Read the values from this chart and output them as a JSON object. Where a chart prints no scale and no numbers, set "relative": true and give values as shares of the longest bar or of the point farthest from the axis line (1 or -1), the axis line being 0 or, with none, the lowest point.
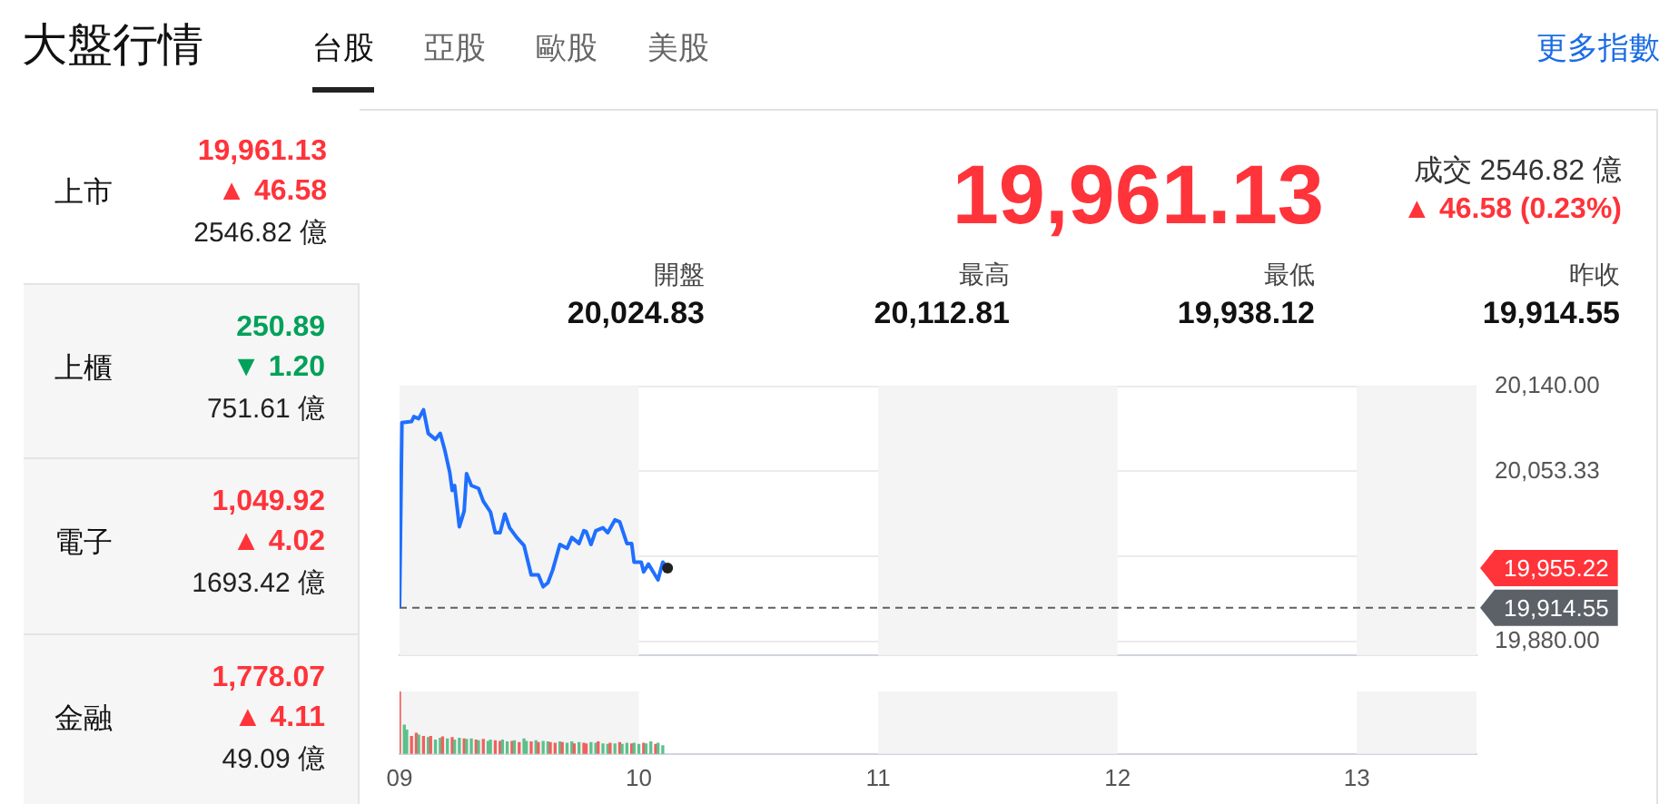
{
  "chart_data": [
    {
      "type": "other",
      "title": "大盤行情",
      "annotations": [
        "台股",
        "亞股",
        "歐股",
        "美股",
        "更多指數",
        "19,961.13",
        "成交 2546.82 億",
        "▲ 46.58 (0.23%)",
        "開盤",
        "20,024.83",
        "最高",
        "20,112.81",
        "最低",
        "19,938.12",
        "昨收",
        "19,914.55",
        "上市",
        "19,961.13",
        "▲ 46.58",
        "2546.82 億",
        "上櫃",
        "250.89",
        "▼ 1.20",
        "751.61 億",
        "電子",
        "1,049.92",
        "▲ 4.02",
        "1693.42 億",
        "金融",
        "1,778.07",
        "▲ 4.11",
        "49.09 億"
      ]
    },
    {
      "type": "line",
      "color": "#1f6fff",
      "tick_labels": "y",
      "grid": "y",
      "xlim": [
        9,
        13.5
      ],
      "ylim": [
        19866,
        20140
      ],
      "yticks": [
        {
          "value": 20140,
          "label": "20,140.00"
        },
        {
          "value": 20053.33,
          "label": "20,053.33"
        },
        {
          "value": 19966.67,
          "label": null
        },
        {
          "value": 19880,
          "label": "19,880.00"
        }
      ],
      "x": [
        9.0,
        9.01,
        9.05,
        9.06,
        9.08,
        9.1,
        9.12,
        9.15,
        9.17,
        9.19,
        9.21,
        9.22,
        9.23,
        9.25,
        9.27,
        9.28,
        9.3,
        9.33,
        9.35,
        9.38,
        9.4,
        9.42,
        9.44,
        9.46,
        9.49,
        9.52,
        9.55,
        9.58,
        9.6,
        9.62,
        9.64,
        9.67,
        9.7,
        9.72,
        9.75,
        9.77,
        9.78,
        9.8,
        9.82,
        9.85,
        9.87,
        9.9,
        9.92,
        9.95,
        9.97,
        9.98,
        10.01,
        10.02,
        10.04,
        10.06,
        10.08,
        10.1,
        10.12
      ],
      "values": [
        19915,
        20103,
        20104,
        20109,
        20107,
        20116,
        20092,
        20086,
        20092,
        20074,
        20052,
        20034,
        20039,
        19997,
        20013,
        20051,
        20039,
        20036,
        20023,
        20012,
        19991,
        19991,
        20010,
        19996,
        19986,
        19978,
        19948,
        19948,
        19936,
        19940,
        19953,
        19979,
        19975,
        19986,
        19980,
        19993,
        19992,
        19979,
        19993,
        19996,
        19991,
        20004,
        20002,
        19980,
        19980,
        19961,
        19961,
        19951,
        19959,
        19951,
        19943,
        19961,
        19955
      ],
      "ref_lines": [
        {
          "axis": "y",
          "value": 19914.55,
          "label": "19,914.55",
          "color": "#5b6167",
          "line_style": "dashed"
        }
      ],
      "annotations": [
        "19,955.22"
      ],
      "bands": [
        {
          "axis": "x",
          "from": 9,
          "to": 10,
          "color": "#f4f4f4"
        },
        {
          "axis": "x",
          "from": 11,
          "to": 12,
          "color": "#f4f4f4"
        },
        {
          "axis": "x",
          "from": 13,
          "to": 13.5,
          "color": "#f4f4f4"
        }
      ]
    },
    {
      "type": "bar",
      "relative": true,
      "tick_labels": "x",
      "xlim": [
        9,
        13.5
      ],
      "xticks": [
        {
          "value": 9,
          "label": "09"
        },
        10,
        11,
        12,
        13
      ],
      "x": [
        9.0,
        9.02,
        9.03,
        9.05,
        9.07,
        9.08,
        9.1,
        9.12,
        9.13,
        9.15,
        9.17,
        9.18,
        9.2,
        9.22,
        9.23,
        9.25,
        9.27,
        9.28,
        9.3,
        9.32,
        9.33,
        9.35,
        9.37,
        9.38,
        9.4,
        9.42,
        9.43,
        9.45,
        9.47,
        9.48,
        9.5,
        9.52,
        9.53,
        9.55,
        9.57,
        9.58,
        9.6,
        9.62,
        9.63,
        9.65,
        9.67,
        9.68,
        9.7,
        9.72,
        9.73,
        9.75,
        9.77,
        9.78,
        9.8,
        9.82,
        9.83,
        9.85,
        9.87,
        9.88,
        9.9,
        9.92,
        9.93,
        9.95,
        9.97,
        9.98,
        10.0,
        10.02,
        10.03,
        10.05,
        10.07,
        10.08,
        10.1
      ],
      "values": [
        1.0,
        0.46,
        0.38,
        0.28,
        0.33,
        0.3,
        0.28,
        0.26,
        0.28,
        0.22,
        0.25,
        0.27,
        0.24,
        0.26,
        0.22,
        0.25,
        0.24,
        0.23,
        0.24,
        0.22,
        0.21,
        0.23,
        0.2,
        0.22,
        0.21,
        0.2,
        0.22,
        0.19,
        0.2,
        0.21,
        0.18,
        0.24,
        0.2,
        0.19,
        0.21,
        0.18,
        0.2,
        0.19,
        0.18,
        0.17,
        0.19,
        0.18,
        0.17,
        0.19,
        0.16,
        0.18,
        0.17,
        0.16,
        0.18,
        0.17,
        0.19,
        0.16,
        0.15,
        0.17,
        0.16,
        0.18,
        0.15,
        0.17,
        0.16,
        0.17,
        0.15,
        0.17,
        0.16,
        0.19,
        0.15,
        0.17,
        0.13
      ],
      "colors": [
        "#f0605d",
        "#5cc08b",
        "#5cc08b",
        "#f0605d",
        "#f0605d",
        "#5cc08b",
        "#f0605d",
        "#5cc08b",
        "#f0605d",
        "#5cc08b",
        "#5cc08b",
        "#f0605d",
        "#5cc08b",
        "#f0605d",
        "#5cc08b",
        "#5cc08b",
        "#f0605d",
        "#5cc08b",
        "#5cc08b",
        "#f0605d",
        "#5cc08b",
        "#f0605d",
        "#5cc08b",
        "#5cc08b",
        "#f0605d",
        "#f0605d",
        "#5cc08b",
        "#5cc08b",
        "#f0605d",
        "#5cc08b",
        "#f0605d",
        "#5cc08b",
        "#5cc08b",
        "#f0605d",
        "#5cc08b",
        "#f0605d",
        "#5cc08b",
        "#5cc08b",
        "#f0605d",
        "#f0605d",
        "#5cc08b",
        "#f0605d",
        "#5cc08b",
        "#5cc08b",
        "#f0605d",
        "#5cc08b",
        "#f0605d",
        "#f0605d",
        "#5cc08b",
        "#5cc08b",
        "#f0605d",
        "#5cc08b",
        "#5cc08b",
        "#f0605d",
        "#5cc08b",
        "#f0605d",
        "#5cc08b",
        "#5cc08b",
        "#f0605d",
        "#5cc08b",
        "#5cc08b",
        "#f0605d",
        "#5cc08b",
        "#5cc08b",
        "#f0605d",
        "#5cc08b",
        "#5cc08b"
      ],
      "bands": [
        {
          "axis": "x",
          "from": 9,
          "to": 10,
          "color": "#f4f4f4"
        },
        {
          "axis": "x",
          "from": 11,
          "to": 12,
          "color": "#f4f4f4"
        },
        {
          "axis": "x",
          "from": 13,
          "to": 13.5,
          "color": "#f4f4f4"
        }
      ]
    }
  ]
}
